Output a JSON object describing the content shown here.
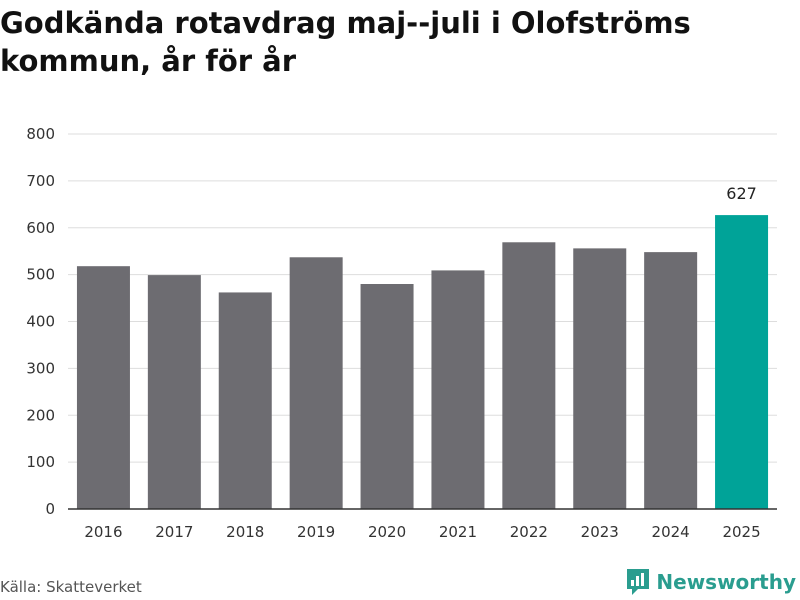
{
  "title": "Godkända rotavdrag maj--juli i Olofströms kommun, år för år",
  "source": "Källa: Skatteverket",
  "brand": "Newsworthy",
  "colors": {
    "bar": "#6d6c71",
    "highlight": "#00a398",
    "grid": "#dddddd",
    "axis": "#333333"
  },
  "chart_data": {
    "type": "bar",
    "categories": [
      "2016",
      "2017",
      "2018",
      "2019",
      "2020",
      "2021",
      "2022",
      "2023",
      "2024",
      "2025"
    ],
    "values": [
      518,
      499,
      462,
      537,
      480,
      509,
      569,
      556,
      548,
      627
    ],
    "highlight_index": 9,
    "highlight_label": "627",
    "yticks": [
      "0",
      "100",
      "200",
      "300",
      "400",
      "500",
      "600",
      "700",
      "800"
    ],
    "ylim": [
      0,
      800
    ],
    "grid": true,
    "legend": "none"
  }
}
